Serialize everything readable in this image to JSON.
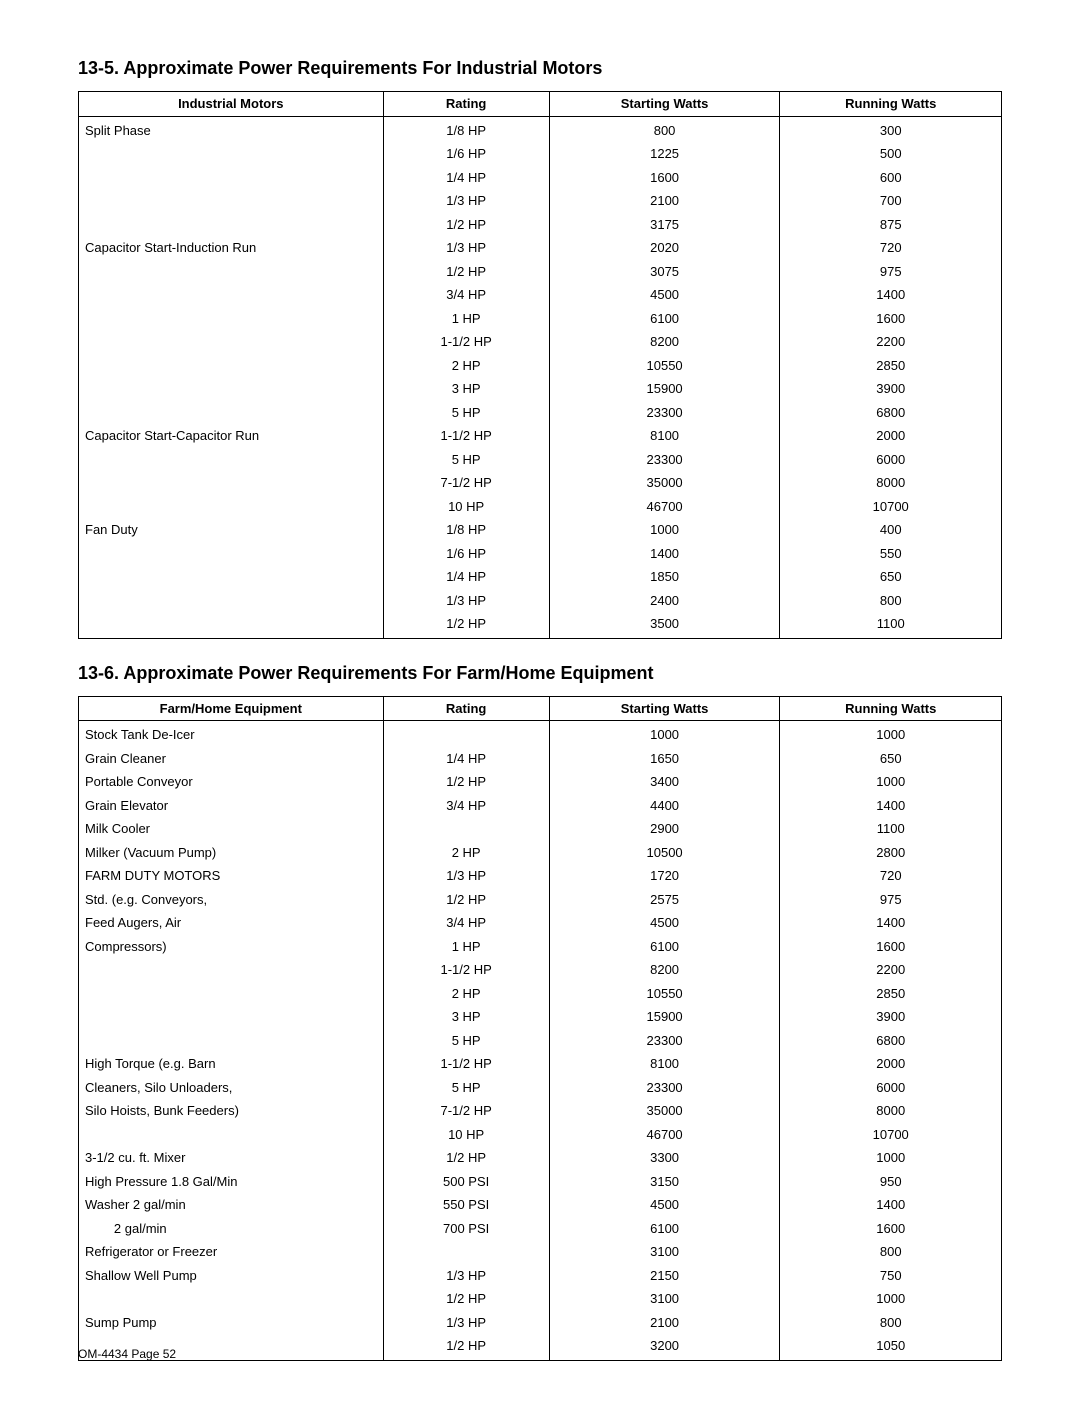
{
  "footer": "OM-4434 Page 52",
  "section1": {
    "title": "13-5. Approximate Power Requirements For Industrial Motors",
    "columns": [
      "Industrial Motors",
      "Rating",
      "Starting Watts",
      "Running Watts"
    ],
    "col_widths": [
      "33%",
      "18%",
      "25%",
      "24%"
    ],
    "rows": [
      {
        "label": "Split Phase",
        "rating": "1/8 HP",
        "start": "800",
        "run": "300"
      },
      {
        "label": "",
        "rating": "1/6 HP",
        "start": "1225",
        "run": "500"
      },
      {
        "label": "",
        "rating": "1/4 HP",
        "start": "1600",
        "run": "600"
      },
      {
        "label": "",
        "rating": "1/3 HP",
        "start": "2100",
        "run": "700"
      },
      {
        "label": "",
        "rating": "1/2 HP",
        "start": "3175",
        "run": "875"
      },
      {
        "label": "Capacitor Start-Induction Run",
        "rating": "1/3 HP",
        "start": "2020",
        "run": "720"
      },
      {
        "label": "",
        "rating": "1/2 HP",
        "start": "3075",
        "run": "975"
      },
      {
        "label": "",
        "rating": "3/4 HP",
        "start": "4500",
        "run": "1400"
      },
      {
        "label": "",
        "rating": "1 HP",
        "start": "6100",
        "run": "1600"
      },
      {
        "label": "",
        "rating": "1-1/2 HP",
        "start": "8200",
        "run": "2200"
      },
      {
        "label": "",
        "rating": "2 HP",
        "start": "10550",
        "run": "2850"
      },
      {
        "label": "",
        "rating": "3 HP",
        "start": "15900",
        "run": "3900"
      },
      {
        "label": "",
        "rating": "5 HP",
        "start": "23300",
        "run": "6800"
      },
      {
        "label": "Capacitor Start-Capacitor Run",
        "rating": "1-1/2 HP",
        "start": "8100",
        "run": "2000"
      },
      {
        "label": "",
        "rating": "5 HP",
        "start": "23300",
        "run": "6000"
      },
      {
        "label": "",
        "rating": "7-1/2 HP",
        "start": "35000",
        "run": "8000"
      },
      {
        "label": "",
        "rating": "10 HP",
        "start": "46700",
        "run": "10700"
      },
      {
        "label": "Fan Duty",
        "rating": "1/8 HP",
        "start": "1000",
        "run": "400"
      },
      {
        "label": "",
        "rating": "1/6 HP",
        "start": "1400",
        "run": "550"
      },
      {
        "label": "",
        "rating": "1/4 HP",
        "start": "1850",
        "run": "650"
      },
      {
        "label": "",
        "rating": "1/3 HP",
        "start": "2400",
        "run": "800"
      },
      {
        "label": "",
        "rating": "1/2 HP",
        "start": "3500",
        "run": "1100"
      }
    ]
  },
  "section2": {
    "title": "13-6. Approximate Power Requirements For Farm/Home Equipment",
    "columns": [
      "Farm/Home Equipment",
      "Rating",
      "Starting Watts",
      "Running Watts"
    ],
    "col_widths": [
      "33%",
      "18%",
      "25%",
      "24%"
    ],
    "rows": [
      {
        "label": "Stock Tank De-Icer",
        "rating": "",
        "start": "1000",
        "run": "1000"
      },
      {
        "label": "Grain Cleaner",
        "rating": "1/4 HP",
        "start": "1650",
        "run": "650"
      },
      {
        "label": "Portable Conveyor",
        "rating": "1/2 HP",
        "start": "3400",
        "run": "1000"
      },
      {
        "label": "Grain Elevator",
        "rating": "3/4 HP",
        "start": "4400",
        "run": "1400"
      },
      {
        "label": "Milk Cooler",
        "rating": "",
        "start": "2900",
        "run": "1100"
      },
      {
        "label": "Milker (Vacuum Pump)",
        "rating": "2 HP",
        "start": "10500",
        "run": "2800"
      },
      {
        "label": "FARM DUTY MOTORS",
        "rating": "1/3 HP",
        "start": "1720",
        "run": "720"
      },
      {
        "label": "Std. (e.g. Conveyors,",
        "rating": "1/2 HP",
        "start": "2575",
        "run": "975"
      },
      {
        "label": "Feed Augers, Air",
        "rating": "3/4 HP",
        "start": "4500",
        "run": "1400"
      },
      {
        "label": "Compressors)",
        "rating": "1 HP",
        "start": "6100",
        "run": "1600"
      },
      {
        "label": "",
        "rating": "1-1/2 HP",
        "start": "8200",
        "run": "2200"
      },
      {
        "label": "",
        "rating": "2 HP",
        "start": "10550",
        "run": "2850"
      },
      {
        "label": "",
        "rating": "3 HP",
        "start": "15900",
        "run": "3900"
      },
      {
        "label": "",
        "rating": "5 HP",
        "start": "23300",
        "run": "6800"
      },
      {
        "label": "High Torque (e.g. Barn",
        "rating": "1-1/2 HP",
        "start": "8100",
        "run": "2000"
      },
      {
        "label": "Cleaners, Silo Unloaders,",
        "rating": "5 HP",
        "start": "23300",
        "run": "6000"
      },
      {
        "label": "Silo Hoists, Bunk Feeders)",
        "rating": "7-1/2 HP",
        "start": "35000",
        "run": "8000"
      },
      {
        "label": "",
        "rating": "10 HP",
        "start": "46700",
        "run": "10700"
      },
      {
        "label": "3-1/2 cu. ft. Mixer",
        "rating": "1/2 HP",
        "start": "3300",
        "run": "1000"
      },
      {
        "label": "High Pressure 1.8 Gal/Min",
        "rating": "500 PSI",
        "start": "3150",
        "run": "950"
      },
      {
        "label": "Washer 2 gal/min",
        "rating": "550 PSI",
        "start": "4500",
        "run": "1400"
      },
      {
        "label": "        2 gal/min",
        "rating": "700 PSI",
        "start": "6100",
        "run": "1600"
      },
      {
        "label": "Refrigerator or Freezer",
        "rating": "",
        "start": "3100",
        "run": "800"
      },
      {
        "label": "Shallow Well Pump",
        "rating": "1/3 HP",
        "start": "2150",
        "run": "750"
      },
      {
        "label": "",
        "rating": "1/2 HP",
        "start": "3100",
        "run": "1000"
      },
      {
        "label": "Sump Pump",
        "rating": "1/3 HP",
        "start": "2100",
        "run": "800"
      },
      {
        "label": "",
        "rating": "1/2 HP",
        "start": "3200",
        "run": "1050"
      }
    ]
  }
}
